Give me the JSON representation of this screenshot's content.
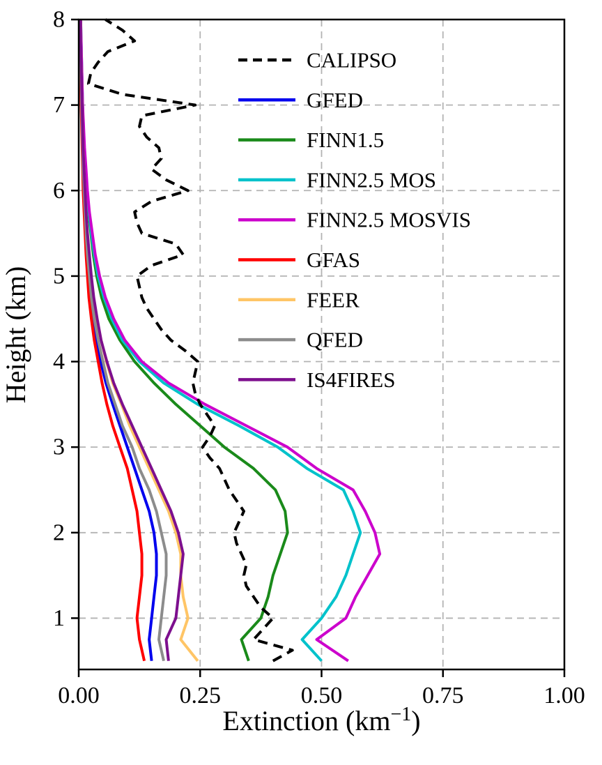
{
  "chart_data": {
    "type": "line",
    "title": "",
    "xlabel": "Extinction (km⁻¹)",
    "xlabel_parts": {
      "prefix": "Extinction (km",
      "superscript": "−1",
      "suffix": ")"
    },
    "ylabel": "Height (km)",
    "xlim": [
      0.0,
      1.0
    ],
    "ylim": [
      0.4,
      8.0
    ],
    "grid": true,
    "grid_color": "#b3b3b3",
    "axis_color": "#000000",
    "x_tick_labels": [
      "0.00",
      "0.25",
      "0.50",
      "0.75",
      "1.00"
    ],
    "x_tick_values": [
      0.0,
      0.25,
      0.5,
      0.75,
      1.0
    ],
    "y_tick_labels": [
      "1",
      "2",
      "3",
      "4",
      "5",
      "6",
      "7",
      "8"
    ],
    "y_tick_values": [
      1,
      2,
      3,
      4,
      5,
      6,
      7,
      8
    ],
    "legend_position": "upper area inside axes, no frame",
    "model_heights_km": [
      0.5,
      0.75,
      1.0,
      1.25,
      1.5,
      1.75,
      2.0,
      2.25,
      2.5,
      2.75,
      3.0,
      3.25,
      3.5,
      3.75,
      4.0,
      4.25,
      4.5,
      4.75,
      5.0,
      5.25,
      5.5,
      5.75,
      6.0,
      6.25,
      6.5,
      6.75,
      7.0,
      7.25,
      7.5,
      7.75,
      8.0
    ],
    "series": [
      {
        "name": "CALIPSO",
        "color": "#000000",
        "line_style": "dashed",
        "heights_km": [
          0.5,
          0.625,
          0.75,
          0.875,
          1.0,
          1.125,
          1.25,
          1.375,
          1.5,
          1.625,
          1.75,
          1.875,
          2.0,
          2.125,
          2.25,
          2.375,
          2.5,
          2.625,
          2.75,
          2.875,
          3.0,
          3.125,
          3.25,
          3.375,
          3.5,
          3.625,
          3.75,
          3.875,
          4.0,
          4.125,
          4.25,
          4.375,
          4.5,
          4.625,
          4.75,
          4.875,
          5.0,
          5.125,
          5.25,
          5.375,
          5.5,
          5.625,
          5.75,
          5.875,
          6.0,
          6.125,
          6.25,
          6.375,
          6.5,
          6.625,
          6.75,
          6.875,
          7.0,
          7.125,
          7.25,
          7.375,
          7.5,
          7.625,
          7.75,
          7.875,
          8.0
        ],
        "values": [
          0.4,
          0.44,
          0.36,
          0.38,
          0.4,
          0.375,
          0.36,
          0.345,
          0.34,
          0.345,
          0.335,
          0.325,
          0.32,
          0.33,
          0.34,
          0.325,
          0.31,
          0.3,
          0.29,
          0.27,
          0.255,
          0.27,
          0.28,
          0.265,
          0.25,
          0.24,
          0.235,
          0.24,
          0.245,
          0.22,
          0.19,
          0.17,
          0.155,
          0.14,
          0.13,
          0.125,
          0.12,
          0.15,
          0.215,
          0.2,
          0.13,
          0.12,
          0.115,
          0.15,
          0.225,
          0.18,
          0.15,
          0.17,
          0.165,
          0.14,
          0.125,
          0.13,
          0.24,
          0.09,
          0.02,
          0.025,
          0.04,
          0.06,
          0.115,
          0.09,
          0.055
        ]
      },
      {
        "name": "GFED",
        "color": "#0000ee",
        "line_style": "solid",
        "values": [
          0.15,
          0.145,
          0.15,
          0.155,
          0.16,
          0.16,
          0.155,
          0.145,
          0.13,
          0.115,
          0.1,
          0.085,
          0.07,
          0.056,
          0.045,
          0.037,
          0.03,
          0.025,
          0.021,
          0.017,
          0.015,
          0.012,
          0.01,
          0.009,
          0.008,
          0.007,
          0.006,
          0.005,
          0.004,
          0.004,
          0.003
        ]
      },
      {
        "name": "FINN1.5",
        "color": "#1a8a1a",
        "line_style": "solid",
        "values": [
          0.35,
          0.335,
          0.375,
          0.39,
          0.4,
          0.415,
          0.43,
          0.425,
          0.405,
          0.36,
          0.3,
          0.25,
          0.2,
          0.155,
          0.115,
          0.085,
          0.062,
          0.047,
          0.037,
          0.03,
          0.025,
          0.02,
          0.016,
          0.013,
          0.011,
          0.009,
          0.008,
          0.006,
          0.005,
          0.004,
          0.004
        ]
      },
      {
        "name": "FINN2.5 MOS",
        "color": "#00c2cb",
        "line_style": "solid",
        "values": [
          0.5,
          0.46,
          0.5,
          0.53,
          0.55,
          0.565,
          0.58,
          0.565,
          0.545,
          0.47,
          0.41,
          0.33,
          0.245,
          0.175,
          0.125,
          0.09,
          0.068,
          0.052,
          0.04,
          0.032,
          0.026,
          0.021,
          0.017,
          0.014,
          0.011,
          0.009,
          0.008,
          0.007,
          0.006,
          0.005,
          0.004
        ]
      },
      {
        "name": "FINN2.5 MOSVIS",
        "color": "#cc00cc",
        "line_style": "solid",
        "values": [
          0.555,
          0.49,
          0.55,
          0.57,
          0.595,
          0.62,
          0.61,
          0.59,
          0.565,
          0.49,
          0.43,
          0.345,
          0.26,
          0.185,
          0.13,
          0.095,
          0.072,
          0.055,
          0.043,
          0.034,
          0.028,
          0.022,
          0.018,
          0.015,
          0.012,
          0.01,
          0.008,
          0.007,
          0.006,
          0.005,
          0.004
        ]
      },
      {
        "name": "GFAS",
        "color": "#ff0000",
        "line_style": "solid",
        "values": [
          0.135,
          0.125,
          0.12,
          0.125,
          0.13,
          0.13,
          0.125,
          0.12,
          0.11,
          0.1,
          0.085,
          0.07,
          0.058,
          0.048,
          0.04,
          0.032,
          0.026,
          0.021,
          0.018,
          0.015,
          0.013,
          0.011,
          0.009,
          0.008,
          0.007,
          0.006,
          0.005,
          0.004,
          0.003,
          0.003,
          0.002
        ]
      },
      {
        "name": "FEER",
        "color": "#ffc566",
        "line_style": "solid",
        "values": [
          0.245,
          0.21,
          0.225,
          0.215,
          0.21,
          0.21,
          0.2,
          0.185,
          0.165,
          0.145,
          0.125,
          0.105,
          0.088,
          0.07,
          0.057,
          0.046,
          0.037,
          0.03,
          0.025,
          0.021,
          0.018,
          0.015,
          0.013,
          0.011,
          0.009,
          0.008,
          0.007,
          0.006,
          0.005,
          0.004,
          0.004
        ]
      },
      {
        "name": "QFED",
        "color": "#8c8c8c",
        "line_style": "solid",
        "values": [
          0.175,
          0.165,
          0.17,
          0.175,
          0.18,
          0.18,
          0.17,
          0.16,
          0.145,
          0.125,
          0.11,
          0.09,
          0.075,
          0.06,
          0.05,
          0.04,
          0.032,
          0.026,
          0.022,
          0.018,
          0.015,
          0.013,
          0.011,
          0.009,
          0.008,
          0.007,
          0.006,
          0.005,
          0.004,
          0.004,
          0.003
        ]
      },
      {
        "name": "IS4FIRES",
        "color": "#7d0f8e",
        "line_style": "solid",
        "values": [
          0.185,
          0.18,
          0.2,
          0.205,
          0.21,
          0.215,
          0.205,
          0.19,
          0.17,
          0.15,
          0.13,
          0.11,
          0.09,
          0.072,
          0.058,
          0.046,
          0.038,
          0.031,
          0.026,
          0.022,
          0.018,
          0.015,
          0.013,
          0.011,
          0.009,
          0.008,
          0.007,
          0.006,
          0.005,
          0.004,
          0.004
        ]
      }
    ]
  }
}
